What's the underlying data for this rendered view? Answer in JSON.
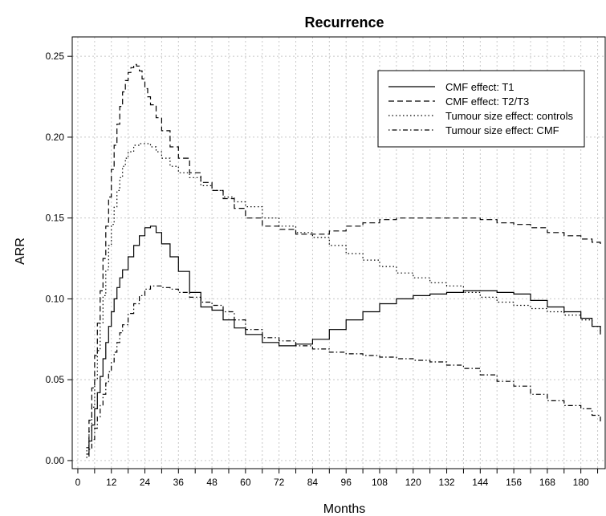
{
  "chart_data": {
    "type": "line",
    "title": "Recurrence",
    "xlabel": "Months",
    "ylabel": "ARR",
    "xlim": [
      -2,
      189
    ],
    "ylim": [
      -0.005,
      0.262
    ],
    "xticks": [
      0,
      6,
      12,
      18,
      24,
      30,
      36,
      42,
      48,
      54,
      60,
      66,
      72,
      78,
      84,
      90,
      96,
      102,
      108,
      114,
      120,
      126,
      132,
      138,
      144,
      150,
      156,
      162,
      168,
      174,
      180,
      186
    ],
    "xtick_labels": [
      "0",
      "",
      "12",
      "",
      "24",
      "",
      "36",
      "",
      "48",
      "",
      "60",
      "",
      "72",
      "",
      "84",
      "",
      "96",
      "",
      "108",
      "",
      "120",
      "",
      "132",
      "",
      "144",
      "",
      "156",
      "",
      "168",
      "",
      "180",
      ""
    ],
    "yticks": [
      0.0,
      0.05,
      0.1,
      0.15,
      0.2,
      0.25
    ],
    "ytick_labels": [
      "0.00",
      "0.05",
      "0.10",
      "0.15",
      "0.20",
      "0.25"
    ],
    "grid": true,
    "legend_position": "top-right",
    "series": [
      {
        "name": "CMF effect: T1",
        "dash": "solid",
        "x": [
          3,
          4,
          5,
          6,
          7,
          8,
          9,
          10,
          11,
          12,
          13,
          14,
          15,
          16,
          18,
          20,
          22,
          24,
          26,
          28,
          30,
          33,
          36,
          40,
          44,
          48,
          52,
          56,
          60,
          66,
          72,
          78,
          84,
          90,
          96,
          102,
          108,
          114,
          120,
          126,
          132,
          138,
          144,
          150,
          156,
          162,
          168,
          174,
          180,
          184,
          187
        ],
        "y": [
          0.004,
          0.012,
          0.022,
          0.032,
          0.042,
          0.052,
          0.063,
          0.073,
          0.083,
          0.092,
          0.1,
          0.107,
          0.113,
          0.118,
          0.126,
          0.133,
          0.139,
          0.144,
          0.145,
          0.141,
          0.134,
          0.126,
          0.117,
          0.104,
          0.095,
          0.093,
          0.087,
          0.082,
          0.078,
          0.073,
          0.071,
          0.072,
          0.075,
          0.081,
          0.087,
          0.092,
          0.097,
          0.1,
          0.102,
          0.103,
          0.104,
          0.105,
          0.105,
          0.104,
          0.103,
          0.099,
          0.095,
          0.092,
          0.088,
          0.083,
          0.078
        ]
      },
      {
        "name": "CMF effect: T2/T3",
        "dash": "dashed",
        "x": [
          3,
          4,
          5,
          6,
          7,
          8,
          9,
          10,
          11,
          12,
          13,
          14,
          15,
          16,
          17,
          18,
          19,
          20,
          21,
          22,
          23,
          24,
          25,
          26,
          28,
          30,
          33,
          36,
          40,
          44,
          48,
          52,
          56,
          60,
          66,
          72,
          78,
          84,
          90,
          96,
          102,
          108,
          114,
          120,
          126,
          132,
          138,
          144,
          150,
          156,
          162,
          168,
          174,
          180,
          184,
          187
        ],
        "y": [
          0.008,
          0.025,
          0.045,
          0.065,
          0.085,
          0.105,
          0.125,
          0.145,
          0.163,
          0.18,
          0.195,
          0.208,
          0.219,
          0.228,
          0.235,
          0.24,
          0.243,
          0.245,
          0.244,
          0.241,
          0.236,
          0.23,
          0.225,
          0.22,
          0.212,
          0.204,
          0.194,
          0.187,
          0.178,
          0.172,
          0.167,
          0.162,
          0.156,
          0.15,
          0.145,
          0.143,
          0.14,
          0.14,
          0.142,
          0.145,
          0.147,
          0.149,
          0.15,
          0.15,
          0.15,
          0.15,
          0.15,
          0.149,
          0.147,
          0.146,
          0.144,
          0.141,
          0.139,
          0.137,
          0.135,
          0.133
        ]
      },
      {
        "name": "Tumour size effect: controls",
        "dash": "dotted",
        "x": [
          3,
          4,
          5,
          6,
          7,
          8,
          9,
          10,
          11,
          12,
          13,
          14,
          15,
          16,
          17,
          18,
          20,
          22,
          24,
          26,
          28,
          30,
          33,
          36,
          40,
          44,
          48,
          52,
          56,
          60,
          66,
          72,
          78,
          84,
          90,
          96,
          102,
          108,
          114,
          120,
          126,
          132,
          138,
          144,
          150,
          156,
          162,
          168,
          174,
          180,
          184,
          187
        ],
        "y": [
          0.006,
          0.018,
          0.033,
          0.05,
          0.068,
          0.085,
          0.102,
          0.118,
          0.133,
          0.146,
          0.157,
          0.167,
          0.175,
          0.182,
          0.187,
          0.191,
          0.195,
          0.196,
          0.196,
          0.194,
          0.191,
          0.187,
          0.182,
          0.178,
          0.175,
          0.17,
          0.167,
          0.163,
          0.16,
          0.157,
          0.15,
          0.145,
          0.141,
          0.138,
          0.133,
          0.128,
          0.124,
          0.12,
          0.116,
          0.113,
          0.11,
          0.108,
          0.104,
          0.101,
          0.098,
          0.096,
          0.094,
          0.092,
          0.09,
          0.087,
          0.083,
          0.08
        ]
      },
      {
        "name": "Tumour size effect: CMF",
        "dash": "dotdash",
        "x": [
          3,
          4,
          5,
          6,
          7,
          8,
          9,
          10,
          11,
          12,
          13,
          14,
          15,
          16,
          18,
          20,
          22,
          24,
          26,
          28,
          30,
          33,
          36,
          40,
          44,
          48,
          52,
          56,
          60,
          66,
          72,
          78,
          84,
          90,
          96,
          102,
          108,
          114,
          120,
          126,
          132,
          138,
          144,
          150,
          156,
          162,
          168,
          174,
          180,
          184,
          187
        ],
        "y": [
          0.002,
          0.007,
          0.013,
          0.02,
          0.027,
          0.034,
          0.041,
          0.048,
          0.055,
          0.061,
          0.067,
          0.073,
          0.079,
          0.084,
          0.091,
          0.097,
          0.102,
          0.106,
          0.108,
          0.108,
          0.107,
          0.106,
          0.104,
          0.101,
          0.098,
          0.096,
          0.092,
          0.087,
          0.081,
          0.076,
          0.074,
          0.071,
          0.069,
          0.067,
          0.066,
          0.065,
          0.064,
          0.063,
          0.062,
          0.061,
          0.059,
          0.057,
          0.053,
          0.049,
          0.046,
          0.041,
          0.037,
          0.034,
          0.032,
          0.028,
          0.024
        ]
      }
    ]
  }
}
